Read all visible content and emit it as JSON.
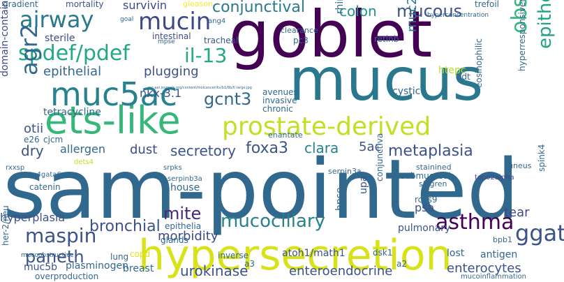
{
  "words": [
    {
      "id": "sam-pointed",
      "text": "sam-pointed",
      "color": "#31688e"
    },
    {
      "id": "goblet",
      "text": "goblet",
      "color": "#440154"
    },
    {
      "id": "mucus",
      "text": "mucus",
      "color": "#2a788e"
    },
    {
      "id": "hypersecretion",
      "text": "hypersecretion",
      "color": "#d8e219"
    },
    {
      "id": "ets-like",
      "text": "ets-like",
      "color": "#35b779"
    },
    {
      "id": "muc5ac",
      "text": "muc5ac",
      "color": "#26828e"
    },
    {
      "id": "prostate-derived",
      "text": "prostate-derived",
      "color": "#c2df23"
    },
    {
      "id": "spdef-pdef",
      "text": "spdef/pdef",
      "color": "#22a884"
    },
    {
      "id": "airway",
      "text": "airway",
      "color": "#2a788e"
    },
    {
      "id": "mucin",
      "text": "mucin",
      "color": "#3e4989"
    },
    {
      "id": "agr2",
      "text": "agr2",
      "color": "#31688e"
    },
    {
      "id": "conjunctival",
      "text": "conjunctival",
      "color": "#2a788e"
    },
    {
      "id": "mucous",
      "text": "mucous",
      "color": "#3b528b"
    },
    {
      "id": "colon",
      "text": "colon",
      "color": "#21918c"
    },
    {
      "id": "muc2",
      "text": "muc2",
      "color": "#2a788e"
    },
    {
      "id": "obstructive",
      "text": "obstructive",
      "color": "#35b779"
    },
    {
      "id": "epithelium",
      "text": "epithelium",
      "color": "#20a486"
    },
    {
      "id": "il-13",
      "text": "il-13",
      "color": "#22a884"
    },
    {
      "id": "epithelial",
      "text": "epithelial",
      "color": "#31688e"
    },
    {
      "id": "gcnt3",
      "text": "gcnt3",
      "color": "#31688e"
    },
    {
      "id": "plugging",
      "text": "plugging",
      "color": "#3b528b"
    },
    {
      "id": "sterile",
      "text": "sterile",
      "color": "#3e4989"
    },
    {
      "id": "intestinal",
      "text": "intestinal",
      "color": "#3e4989"
    },
    {
      "id": "survivin",
      "text": "survivin",
      "color": "#3e4989"
    },
    {
      "id": "mortality",
      "text": "mortality",
      "color": "#3b528b"
    },
    {
      "id": "gradient",
      "text": "gradient",
      "color": "#31688e"
    },
    {
      "id": "gleason",
      "text": "gleason",
      "color": "#fde725"
    },
    {
      "id": "tracheal",
      "text": "tracheal",
      "color": "#3b528b"
    },
    {
      "id": "pc3",
      "text": "pc3",
      "color": "#31688e"
    },
    {
      "id": "retlnb",
      "text": "retlnb",
      "color": "#31688e"
    },
    {
      "id": "clearance",
      "text": "clearance",
      "color": "#31688e"
    },
    {
      "id": "trefoil",
      "text": "trefoil",
      "color": "#31688e"
    },
    {
      "id": "hyperconcentration",
      "text": "hyperconcentration",
      "color": "#31688e"
    },
    {
      "id": "htepc",
      "text": "htepc",
      "color": "#b5de2b"
    },
    {
      "id": "rhinoviral",
      "text": "rhinoviral",
      "color": "#31688e"
    },
    {
      "id": "avenues",
      "text": "avenues",
      "color": "#31688e"
    },
    {
      "id": "invasive",
      "text": "invasive",
      "color": "#31688e"
    },
    {
      "id": "chronic",
      "text": "chronic",
      "color": "#31688e"
    },
    {
      "id": "nkx-3-1",
      "text": "nkx-3.1",
      "color": "#3b528b"
    },
    {
      "id": "tetracycline",
      "text": "tetracycline",
      "color": "#31688e"
    },
    {
      "id": "domain-containing",
      "text": "domain-containing",
      "color": "#3e4989"
    },
    {
      "id": "otii",
      "text": "otii",
      "color": "#3b528b"
    },
    {
      "id": "e26",
      "text": "e26",
      "color": "#31688e"
    },
    {
      "id": "cjcm",
      "text": "cjcm",
      "color": "#31688e"
    },
    {
      "id": "dry",
      "text": "dry",
      "color": "#3b528b"
    },
    {
      "id": "allergen",
      "text": "allergen",
      "color": "#31688e"
    },
    {
      "id": "dust",
      "text": "dust",
      "color": "#3e4989"
    },
    {
      "id": "secretory",
      "text": "secretory",
      "color": "#3b528b"
    },
    {
      "id": "foxa3",
      "text": "foxa3",
      "color": "#3b528b"
    },
    {
      "id": "clara",
      "text": "clara",
      "color": "#26828e"
    },
    {
      "id": "5ac",
      "text": "5ac",
      "color": "#3b528b"
    },
    {
      "id": "metaplasia",
      "text": "metaplasia",
      "color": "#3b528b"
    },
    {
      "id": "cystic",
      "text": "cystic",
      "color": "#31688e"
    },
    {
      "id": "adt",
      "text": "adt",
      "color": "#31688e"
    },
    {
      "id": "eosinophilic",
      "text": "eosinophilic",
      "color": "#31688e"
    },
    {
      "id": "hyperresponsiveness",
      "text": "hyperresponsiveness",
      "color": "#31688e"
    },
    {
      "id": "enantate",
      "text": "enantate",
      "color": "#31688e"
    },
    {
      "id": "serpin3a",
      "text": "serpin3a",
      "color": "#31688e"
    },
    {
      "id": "stainined",
      "text": "stainined",
      "color": "#31688e"
    },
    {
      "id": "submucosal",
      "text": "submucosal",
      "color": "#31688e"
    },
    {
      "id": "sjogren",
      "text": "sjogren",
      "color": "#31688e"
    },
    {
      "id": "topo2alpha",
      "text": "topo2alpha",
      "color": "#3e4989"
    },
    {
      "id": "cuneus",
      "text": "cuneus",
      "color": "#31688e"
    },
    {
      "id": "spink4",
      "text": "spink4",
      "color": "#31688e"
    },
    {
      "id": "mite",
      "text": "mite",
      "color": "#482878"
    },
    {
      "id": "house",
      "text": "house",
      "color": "#31688e"
    },
    {
      "id": "upa",
      "text": "upa",
      "color": "#3b528b"
    },
    {
      "id": "hpse",
      "text": "hpse",
      "color": "#31688e"
    },
    {
      "id": "conjunctiva",
      "text": "conjunctiva",
      "color": "#31688e"
    },
    {
      "id": "rcas9",
      "text": "rcas9",
      "color": "#31688e"
    },
    {
      "id": "psa",
      "text": "psa",
      "color": "#3b528b"
    },
    {
      "id": "tear",
      "text": "tear",
      "color": "#3e4989"
    },
    {
      "id": "hyperplasia",
      "text": "hyperplasia",
      "color": "#3b528b"
    },
    {
      "id": "epithelia",
      "text": "epithelia",
      "color": "#31688e"
    },
    {
      "id": "bronchial",
      "text": "bronchial",
      "color": "#3b528b"
    },
    {
      "id": "mucociliary",
      "text": "mucociliary",
      "color": "#26828e"
    },
    {
      "id": "asthma",
      "text": "asthma",
      "color": "#440154"
    },
    {
      "id": "ggat",
      "text": "ggat",
      "color": "#3b528b"
    },
    {
      "id": "maspin",
      "text": "maspin",
      "color": "#3b528b"
    },
    {
      "id": "paneth",
      "text": "paneth",
      "color": "#3b528b"
    },
    {
      "id": "morbidity",
      "text": "morbidity",
      "color": "#3e4989"
    },
    {
      "id": "glands",
      "text": "glands",
      "color": "#31688e"
    },
    {
      "id": "pulmonary",
      "text": "pulmonary",
      "color": "#3b528b"
    },
    {
      "id": "atoh1-math1",
      "text": "atoh1/math1",
      "color": "#3b528b"
    },
    {
      "id": "dsk1",
      "text": "dsk1",
      "color": "#31688e"
    },
    {
      "id": "lost",
      "text": "lost",
      "color": "#31688e"
    },
    {
      "id": "inverse",
      "text": "inverse",
      "color": "#31688e"
    },
    {
      "id": "copd",
      "text": "copd",
      "color": "#d8e219"
    },
    {
      "id": "muc5b",
      "text": "muc5b",
      "color": "#3b528b"
    },
    {
      "id": "plasminogen",
      "text": "plasminogen",
      "color": "#31688e"
    },
    {
      "id": "breast",
      "text": "breast",
      "color": "#31688e"
    },
    {
      "id": "lung",
      "text": "lung",
      "color": "#31688e"
    },
    {
      "id": "urokinase",
      "text": "urokinase",
      "color": "#3b528b"
    },
    {
      "id": "a3",
      "text": "a3",
      "color": "#31688e"
    },
    {
      "id": "enteroendocrine",
      "text": "enteroendocrine",
      "color": "#3b528b"
    },
    {
      "id": "a2",
      "text": "a2",
      "color": "#31688e"
    },
    {
      "id": "enterocytes",
      "text": "enterocytes",
      "color": "#3b528b"
    },
    {
      "id": "antigen",
      "text": "antigen",
      "color": "#31688e"
    },
    {
      "id": "bpb1",
      "text": "bpb1",
      "color": "#31688e"
    },
    {
      "id": "mucoinflammation",
      "text": "mucoinflammation",
      "color": "#31688e"
    },
    {
      "id": "overproduction",
      "text": "overproduction",
      "color": "#31688e"
    },
    {
      "id": "mucoobstructive",
      "text": "mucoobstructive",
      "color": "#31688e"
    },
    {
      "id": "her-2-neu",
      "text": "her-2/neu",
      "color": "#31688e"
    },
    {
      "id": "catenin",
      "text": "catenin",
      "color": "#31688e"
    },
    {
      "id": "gata4gata6",
      "text": "gata4gata6",
      "color": "#31688e"
    },
    {
      "id": "serpinb3a",
      "text": "serpinb3a",
      "color": "#31688e"
    },
    {
      "id": "srpks",
      "text": "srpks",
      "color": "#31688e"
    },
    {
      "id": "dets4",
      "text": "dets4",
      "color": "#c2df23"
    },
    {
      "id": "rxxsp",
      "text": "rxxsp",
      "color": "#31688e"
    },
    {
      "id": "ang4",
      "text": "ang4",
      "color": "#31688e"
    },
    {
      "id": "goal",
      "text": "goal",
      "color": "#31688e"
    },
    {
      "id": "url",
      "text": "mc-aal.journals.org/content/molcancer/ks/b1/8b/f/.large.jpg",
      "color": "#31688e"
    },
    {
      "id": "mpse",
      "text": "mpse",
      "color": "#31688e"
    }
  ]
}
